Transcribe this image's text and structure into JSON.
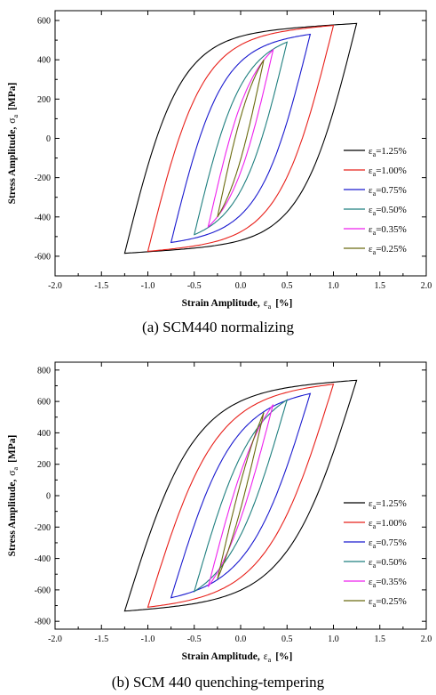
{
  "chart_data": [
    {
      "type": "line",
      "title": "",
      "caption": "(a) SCM440 normalizing",
      "xlabel": "Strain Amplitude,",
      "xlabel_symbol": "ε",
      "xlabel_sub": "a",
      "xlabel_unit": "[%]",
      "ylabel": "Stress Amplitude,",
      "ylabel_symbol": "σ",
      "ylabel_sub": "a",
      "ylabel_unit": "[MPa]",
      "xlim": [
        -2.0,
        2.0
      ],
      "ylim": [
        -700,
        650
      ],
      "xticks": [
        -2.0,
        -1.5,
        -1.0,
        -0.5,
        0.0,
        0.5,
        1.0,
        1.5,
        2.0
      ],
      "xtick_labels": [
        "-2.0",
        "-1.5",
        "-1.0",
        "-0.5",
        "0.0",
        "0.5",
        "1.0",
        "1.5",
        "2.0"
      ],
      "yticks": [
        -600,
        -400,
        -200,
        0,
        200,
        400,
        600
      ],
      "ytick_labels": [
        "-600",
        "-400",
        "-200",
        "0",
        "200",
        "400",
        "600"
      ],
      "grid": false,
      "legend_position": "right",
      "series": [
        {
          "name": "=1.25%",
          "legend_symbol": "ε",
          "legend_sub": "a",
          "color": "#000000",
          "amplitude": 1.25,
          "peak_stress": 585
        },
        {
          "name": "=1.00%",
          "legend_symbol": "ε",
          "legend_sub": "a",
          "color": "#e8201a",
          "amplitude": 1.0,
          "peak_stress": 575
        },
        {
          "name": "=0.75%",
          "legend_symbol": "ε",
          "legend_sub": "a",
          "color": "#1a1acf",
          "amplitude": 0.75,
          "peak_stress": 530
        },
        {
          "name": "=0.50%",
          "legend_symbol": "ε",
          "legend_sub": "a",
          "color": "#1f7f7f",
          "amplitude": 0.5,
          "peak_stress": 490
        },
        {
          "name": "=0.35%",
          "legend_symbol": "ε",
          "legend_sub": "a",
          "color": "#ee22ee",
          "amplitude": 0.35,
          "peak_stress": 450
        },
        {
          "name": "=0.25%",
          "legend_symbol": "ε",
          "legend_sub": "a",
          "color": "#6b6b10",
          "amplitude": 0.25,
          "peak_stress": 400
        }
      ]
    },
    {
      "type": "line",
      "title": "",
      "caption": "(b) SCM 440 quenching-tempering",
      "xlabel": "Strain Amplitude,",
      "xlabel_symbol": "ε",
      "xlabel_sub": "a",
      "xlabel_unit": "[%]",
      "ylabel": "Stress Amplitude,",
      "ylabel_symbol": "σ",
      "ylabel_sub": "a",
      "ylabel_unit": "[MPa]",
      "xlim": [
        -2.0,
        2.0
      ],
      "ylim": [
        -850,
        850
      ],
      "xticks": [
        -2.0,
        -1.5,
        -1.0,
        -0.5,
        0.0,
        0.5,
        1.0,
        1.5,
        2.0
      ],
      "xtick_labels": [
        "-2.0",
        "-1.5",
        "-1.0",
        "-0.5",
        "0.0",
        "0.5",
        "1.0",
        "1.5",
        "2.0"
      ],
      "yticks": [
        -800,
        -600,
        -400,
        -200,
        0,
        200,
        400,
        600,
        800
      ],
      "ytick_labels": [
        "-800",
        "-600",
        "-400",
        "-200",
        "0",
        "200",
        "400",
        "600",
        "800"
      ],
      "grid": false,
      "legend_position": "right",
      "series": [
        {
          "name": "=1.25%",
          "legend_symbol": "ε",
          "legend_sub": "a",
          "color": "#000000",
          "amplitude": 1.25,
          "peak_stress": 735
        },
        {
          "name": "=1.00%",
          "legend_symbol": "ε",
          "legend_sub": "a",
          "color": "#e8201a",
          "amplitude": 1.0,
          "peak_stress": 710
        },
        {
          "name": "=0.75%",
          "legend_symbol": "ε",
          "legend_sub": "a",
          "color": "#1a1acf",
          "amplitude": 0.75,
          "peak_stress": 650
        },
        {
          "name": "=0.50%",
          "legend_symbol": "ε",
          "legend_sub": "a",
          "color": "#1f7f7f",
          "amplitude": 0.5,
          "peak_stress": 610
        },
        {
          "name": "=0.35%",
          "legend_symbol": "ε",
          "legend_sub": "a",
          "color": "#ee22ee",
          "amplitude": 0.35,
          "peak_stress": 580
        },
        {
          "name": "=0.25%",
          "legend_symbol": "ε",
          "legend_sub": "a",
          "color": "#6b6b10",
          "amplitude": 0.25,
          "peak_stress": 530
        }
      ]
    }
  ]
}
